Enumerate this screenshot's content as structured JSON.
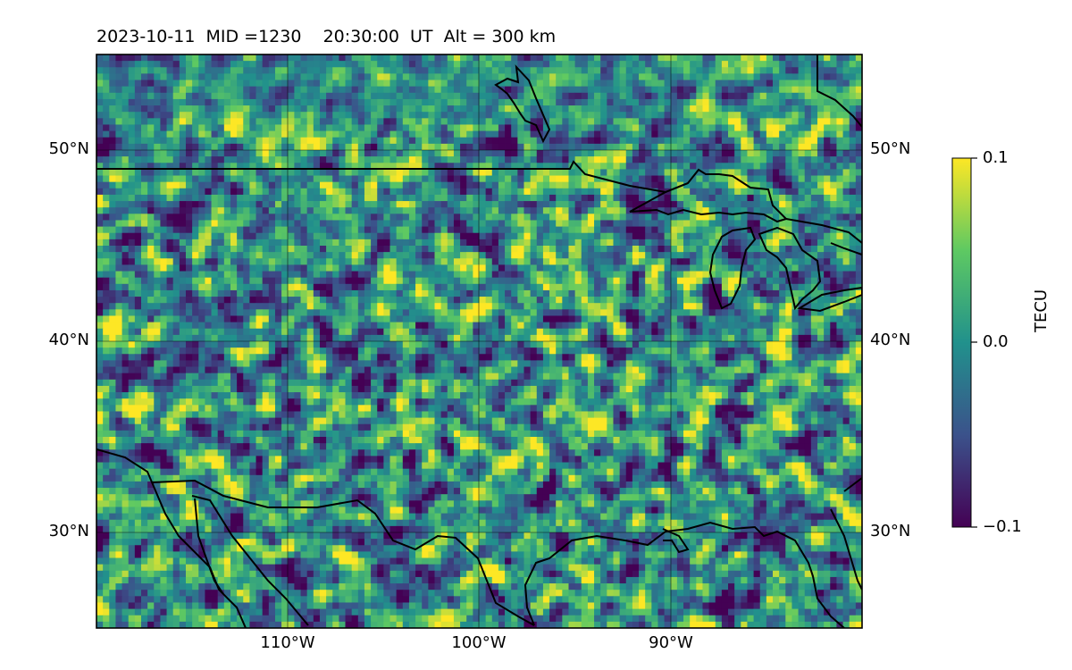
{
  "title": "2023-10-11  MID =1230    20:30:00  UT  Alt = 300 km",
  "map": {
    "lon_range": [
      -120,
      -80
    ],
    "lat_range": [
      25,
      55
    ],
    "lat_labels": [
      "50°N",
      "40°N",
      "30°N"
    ],
    "lat_values": [
      50,
      40,
      30
    ],
    "lon_labels": [
      "110°W",
      "100°W",
      "90°W"
    ],
    "lon_values": [
      -110,
      -100,
      -90
    ],
    "grid": true,
    "coastline_color": "#000000"
  },
  "colorbar": {
    "label": "TECU",
    "colormap": "viridis",
    "vmin": -0.1,
    "vmax": 0.1,
    "tick_labels": [
      "0.1",
      "0.0",
      "−0.1"
    ],
    "colors": [
      "#440154",
      "#3b528b",
      "#21918c",
      "#5ec962",
      "#fde725"
    ]
  }
}
